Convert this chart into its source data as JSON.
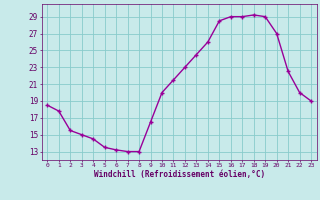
{
  "x": [
    0,
    1,
    2,
    3,
    4,
    5,
    6,
    7,
    8,
    9,
    10,
    11,
    12,
    13,
    14,
    15,
    16,
    17,
    18,
    19,
    20,
    21,
    22,
    23
  ],
  "y": [
    18.5,
    17.8,
    15.5,
    15.0,
    14.5,
    13.5,
    13.2,
    13.0,
    13.0,
    16.5,
    20.0,
    21.5,
    23.0,
    24.5,
    26.0,
    28.5,
    29.0,
    29.0,
    29.2,
    29.0,
    27.0,
    22.5,
    20.0,
    19.0
  ],
  "line_color": "#990099",
  "marker": "+",
  "marker_size": 3,
  "background_color": "#c8eaea",
  "grid_color": "#88cccc",
  "xlabel": "Windchill (Refroidissement éolien,°C)",
  "xlabel_color": "#660066",
  "tick_color": "#660066",
  "ylabel_ticks": [
    13,
    15,
    17,
    19,
    21,
    23,
    25,
    27,
    29
  ],
  "ylim": [
    12.0,
    30.5
  ],
  "xlim": [
    -0.5,
    23.5
  ],
  "xticks": [
    0,
    1,
    2,
    3,
    4,
    5,
    6,
    7,
    8,
    9,
    10,
    11,
    12,
    13,
    14,
    15,
    16,
    17,
    18,
    19,
    20,
    21,
    22,
    23
  ]
}
